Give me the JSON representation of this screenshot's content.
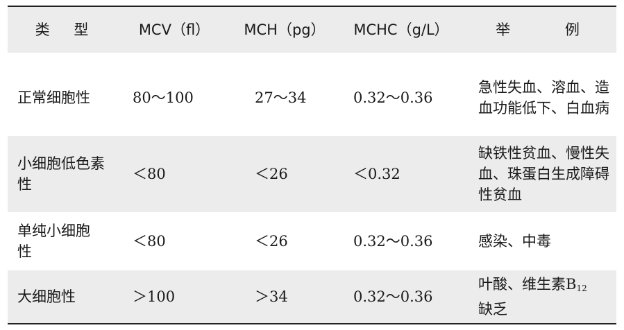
{
  "headers": [
    "类  型",
    "MCV（fl）",
    "MCH（pg）",
    "MCHC（g/L）",
    "举  例"
  ],
  "rows": [
    {
      "type": "正常细胞性",
      "mcv": "80～100",
      "mch": "27～34",
      "mchc": "0.32～0.36",
      "example": "急性失血、溶血、造血功能低下、白血病"
    },
    {
      "type": "小细胞低色素性",
      "mcv": "＜80",
      "mch": "＜26",
      "mchc": "＜0.32",
      "example": "缺铁性贫血、慢性失血、珠蛋白生成障碍性贫血"
    },
    {
      "type": "单纯小细胞性",
      "mcv": "＜80",
      "mch": "＜26",
      "mchc": "0.32～0.36",
      "example": "感染、中毒"
    },
    {
      "type": "大细胞性",
      "mcv": "＞100",
      "mch": "＞34",
      "mchc": "0.32～0.36",
      "example_main": "叶酸、维生素B",
      "example_sub": "12",
      "example_tail": "缺乏"
    }
  ],
  "colors": {
    "header_bg": "#ececec",
    "shaded_row_bg": "#ececec",
    "rule": "#222222"
  }
}
